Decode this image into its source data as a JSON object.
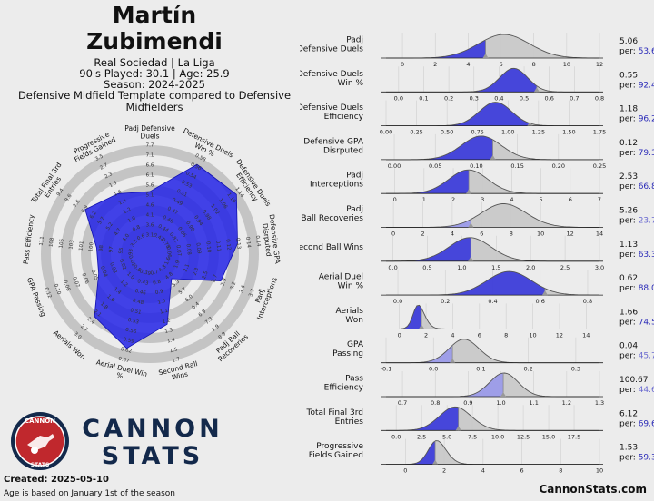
{
  "header": {
    "name_line1": "Martín",
    "name_line2": "Zubimendi",
    "team_league": "Real Sociedad | La Liga",
    "nineties_age": "90's Played: 30.1 | Age: 25.9",
    "season": "Season: 2024-2025",
    "template": "Defensive Midfield Template compared to Defensive Midfielders"
  },
  "brand": {
    "line1": "CANNON",
    "line2": "STATS",
    "logo_top": "CANNON",
    "logo_bottom": "STATS"
  },
  "footer": {
    "created": "Created: 2025-05-10",
    "age_note": "Age is based on January 1st of the season",
    "website": "CannonStats.com"
  },
  "colors": {
    "background": "#ececec",
    "accent_blue": "#2323e6",
    "dist_blue": "#3d3dd9",
    "dist_light": "#9a9ae8",
    "dist_grey": "#c8c8c8",
    "ring_grey": "#c4c4c4",
    "brand_navy": "#13294b",
    "logo_red": "#c0282d"
  },
  "chart_data": [
    {
      "type": "radar",
      "axes": [
        {
          "label": "Padj Defensive\nDuels",
          "percentile": 53.6,
          "ticks": [
            "2.6",
            "3.1",
            "3.6",
            "4.1",
            "4.6",
            "5.1",
            "5.6",
            "6.1",
            "6.6",
            "7.1",
            "7.7"
          ]
        },
        {
          "label": "Defensive Duels\nWin %",
          "percentile": 92.4,
          "ticks": [
            "0.40",
            "0.42",
            "0.44",
            "0.46",
            "0.47",
            "0.49",
            "0.51",
            "0.53",
            "0.54",
            "0.56",
            "0.58"
          ]
        },
        {
          "label": "Defensive Duels\nEfficiency",
          "percentile": 96.2,
          "ticks": [
            "0.74",
            "0.78",
            "0.82",
            "0.86",
            "0.90",
            "0.94",
            "0.98",
            "1.02",
            "1.06",
            "1.10",
            "1.14"
          ]
        },
        {
          "label": "Defensive GPA\nDisrputed",
          "percentile": 79.3,
          "ticks": [
            "0.05",
            "0.06",
            "0.07",
            "0.08",
            "0.09",
            "0.10",
            "0.11",
            "0.12",
            "0.13",
            "0.14",
            "0.14"
          ]
        },
        {
          "label": "Padj\nInterceptions",
          "percentile": 66.8,
          "ticks": [
            "1.3",
            "1.6",
            "1.9",
            "2.1",
            "2.3",
            "2.5",
            "2.7",
            "2.9",
            "3.2",
            "3.4",
            "3.7"
          ]
        },
        {
          "label": "Padj Ball\nRecoveries",
          "percentile": 23.7,
          "ticks": [
            "3.8",
            "4.3",
            "4.8",
            "5.3",
            "5.7",
            "6.0",
            "6.4",
            "6.9",
            "7.3",
            "7.9",
            "8.9"
          ]
        },
        {
          "label": "Second Ball\nWins",
          "percentile": 63.3,
          "ticks": [
            "0.5",
            "0.7",
            "0.8",
            "0.9",
            "1.0",
            "1.1",
            "1.2",
            "1.3",
            "1.4",
            "1.5",
            "1.7"
          ]
        },
        {
          "label": "Aerial Duel Win\n%",
          "percentile": 88.0,
          "ticks": [
            "0.35",
            "0.39",
            "0.43",
            "0.46",
            "0.48",
            "0.51",
            "0.53",
            "0.56",
            "0.59",
            "0.62",
            "0.67"
          ]
        },
        {
          "label": "Aerials Won",
          "percentile": 74.5,
          "ticks": [
            "0.5",
            "0.8",
            "1.0",
            "1.2",
            "1.4",
            "1.6",
            "1.8",
            "2.1",
            "2.4",
            "2.7",
            "3.0"
          ]
        },
        {
          "label": "GPA Passing",
          "percentile": 45.7,
          "ticks": [
            "0.00",
            "0.01",
            "0.02",
            "0.03",
            "0.04",
            "0.05",
            "0.06",
            "0.07",
            "0.08",
            "0.10",
            "0.12"
          ]
        },
        {
          "label": "Pass Efficiency",
          "percentile": 44.6,
          "ticks": [
            "90",
            "93",
            "95",
            "97",
            "98",
            "100",
            "101",
            "103",
            "105",
            "108",
            "111"
          ]
        },
        {
          "label": "Total Final 3rd\nEntries",
          "percentile": 69.6,
          "ticks": [
            "2.3",
            "3.3",
            "4.0",
            "4.7",
            "5.2",
            "5.7",
            "6.2",
            "6.9",
            "7.6",
            "8.6",
            "9.4"
          ]
        },
        {
          "label": "Progressive\nFields Gained",
          "percentile": 59.3,
          "ticks": [
            "0.4",
            "0.6",
            "0.8",
            "1.0",
            "1.2",
            "1.4",
            "1.6",
            "1.9",
            "2.3",
            "2.7",
            "3.5"
          ]
        }
      ]
    },
    {
      "type": "area",
      "title": "percentile distributions",
      "rows": [
        {
          "label": "Padj\nDefensive Duels",
          "value_text": "5.06",
          "pct_text": "53.6",
          "value": 5.06,
          "xmin": -1,
          "xmax": 12,
          "ticks": [
            "0",
            "2",
            "4",
            "6",
            "8",
            "10",
            "12"
          ],
          "tick_vals": [
            0,
            2,
            4,
            6,
            8,
            10,
            12
          ],
          "mu": 5.8,
          "sd": 1.6,
          "skew": 0.3
        },
        {
          "label": "Defensive Duels\nWin %",
          "value_text": "0.55",
          "pct_text": "92.4",
          "value": 0.55,
          "xmin": -0.05,
          "xmax": 0.8,
          "ticks": [
            "0.0",
            "0.1",
            "0.2",
            "0.3",
            "0.4",
            "0.5",
            "0.6",
            "0.7",
            "0.8"
          ],
          "tick_vals": [
            0,
            0.1,
            0.2,
            0.3,
            0.4,
            0.5,
            0.6,
            0.7,
            0.8
          ],
          "mu": 0.48,
          "sd": 0.06,
          "skew": -0.5
        },
        {
          "label": "Defensive Duels\nEfficiency",
          "value_text": "1.18",
          "pct_text": "96.2",
          "value": 1.18,
          "xmin": 0.0,
          "xmax": 1.75,
          "ticks": [
            "0.00",
            "0.25",
            "0.50",
            "0.75",
            "1.00",
            "1.25",
            "1.50",
            "1.75"
          ],
          "tick_vals": [
            0,
            0.25,
            0.5,
            0.75,
            1.0,
            1.25,
            1.5,
            1.75
          ],
          "mu": 0.94,
          "sd": 0.14,
          "skew": -0.4
        },
        {
          "label": "Defensive GPA\nDisrputed",
          "value_text": "0.12",
          "pct_text": "79.3",
          "value": 0.12,
          "xmin": -0.01,
          "xmax": 0.25,
          "ticks": [
            "0.00",
            "0.05",
            "0.10",
            "0.15",
            "0.20",
            "0.25"
          ],
          "tick_vals": [
            0,
            0.05,
            0.1,
            0.15,
            0.2,
            0.25
          ],
          "mu": 0.1,
          "sd": 0.025,
          "skew": 0.3
        },
        {
          "label": "Padj\nInterceptions",
          "value_text": "2.53",
          "pct_text": "66.8",
          "value": 2.53,
          "xmin": -0.3,
          "xmax": 7,
          "ticks": [
            "0",
            "1",
            "2",
            "3",
            "4",
            "5",
            "6",
            "7"
          ],
          "tick_vals": [
            0,
            1,
            2,
            3,
            4,
            5,
            6,
            7
          ],
          "mu": 2.3,
          "sd": 0.7,
          "skew": 0.4
        },
        {
          "label": "Padj\nBall Recoveries",
          "value_text": "5.26",
          "pct_text": "23.7",
          "value": 5.26,
          "xmin": -0.5,
          "xmax": 14,
          "ticks": [
            "0",
            "2",
            "4",
            "6",
            "8",
            "10",
            "12",
            "14"
          ],
          "tick_vals": [
            0,
            2,
            4,
            6,
            8,
            10,
            12,
            14
          ],
          "mu": 6.8,
          "sd": 1.7,
          "skew": 0.6
        },
        {
          "label": "Second Ball Wins",
          "value_text": "1.13",
          "pct_text": "63.3",
          "value": 1.13,
          "xmin": -0.1,
          "xmax": 3.0,
          "ticks": [
            "0.0",
            "0.5",
            "1.0",
            "1.5",
            "2.0",
            "2.5",
            "3.0"
          ],
          "tick_vals": [
            0,
            0.5,
            1,
            1.5,
            2,
            2.5,
            3
          ],
          "mu": 1.0,
          "sd": 0.33,
          "skew": 0.5
        },
        {
          "label": "Aerial Duel\nWin %",
          "value_text": "0.62",
          "pct_text": "88.0",
          "value": 0.62,
          "xmin": -0.05,
          "xmax": 0.85,
          "ticks": [
            "0.0",
            "0.2",
            "0.4",
            "0.6",
            "0.8"
          ],
          "tick_vals": [
            0,
            0.2,
            0.4,
            0.6,
            0.8
          ],
          "mu": 0.5,
          "sd": 0.1,
          "skew": -0.4
        },
        {
          "label": "Aerials\nWon",
          "value_text": "1.66",
          "pct_text": "74.5",
          "value": 1.66,
          "xmin": -1,
          "xmax": 15,
          "ticks": [
            "0",
            "2",
            "4",
            "6",
            "8",
            "10",
            "12",
            "14"
          ],
          "tick_vals": [
            0,
            2,
            4,
            6,
            8,
            10,
            12,
            14
          ],
          "mu": 1.1,
          "sd": 0.6,
          "skew": 1.5
        },
        {
          "label": "GPA\nPassing",
          "value_text": "0.04",
          "pct_text": "45.7",
          "value": 0.04,
          "xmin": -0.1,
          "xmax": 0.35,
          "ticks": [
            "-0.1",
            "0.0",
            "0.1",
            "0.2",
            "0.3"
          ],
          "tick_vals": [
            -0.1,
            0,
            0.1,
            0.2,
            0.3
          ],
          "mu": 0.05,
          "sd": 0.035,
          "skew": 0.6
        },
        {
          "label": "Pass\nEfficiency",
          "value_text": "100.67",
          "pct_text": "44.6",
          "value": 100.67,
          "xmin": 0.65,
          "xmax": 1.3,
          "ticks": [
            "0.7",
            "0.8",
            "0.9",
            "1.0",
            "1.1",
            "1.2",
            "1.3"
          ],
          "tick_vals": [
            0.7,
            0.8,
            0.9,
            1.0,
            1.1,
            1.2,
            1.3
          ],
          "mu": 1.02,
          "sd": 0.045,
          "skew": -0.3,
          "marker_at": 1.007
        },
        {
          "label": "Total Final 3rd\nEntries",
          "value_text": "6.12",
          "pct_text": "69.6",
          "value": 6.12,
          "xmin": -1,
          "xmax": 20,
          "ticks": [
            "0.0",
            "2.5",
            "5.0",
            "7.5",
            "10.0",
            "12.5",
            "15.0",
            "17.5"
          ],
          "tick_vals": [
            0,
            2.5,
            5,
            7.5,
            10,
            12.5,
            15,
            17.5
          ],
          "mu": 5.0,
          "sd": 1.8,
          "skew": 0.7
        },
        {
          "label": "Progressive\nFields Gained",
          "value_text": "1.53",
          "pct_text": "59.3",
          "value": 1.53,
          "xmin": -1,
          "xmax": 10,
          "ticks": [
            "0",
            "2",
            "4",
            "6",
            "8",
            "10"
          ],
          "tick_vals": [
            0,
            2,
            4,
            6,
            8,
            10
          ],
          "mu": 1.3,
          "sd": 0.6,
          "skew": 1.2
        }
      ],
      "per_prefix": "per: "
    }
  ]
}
